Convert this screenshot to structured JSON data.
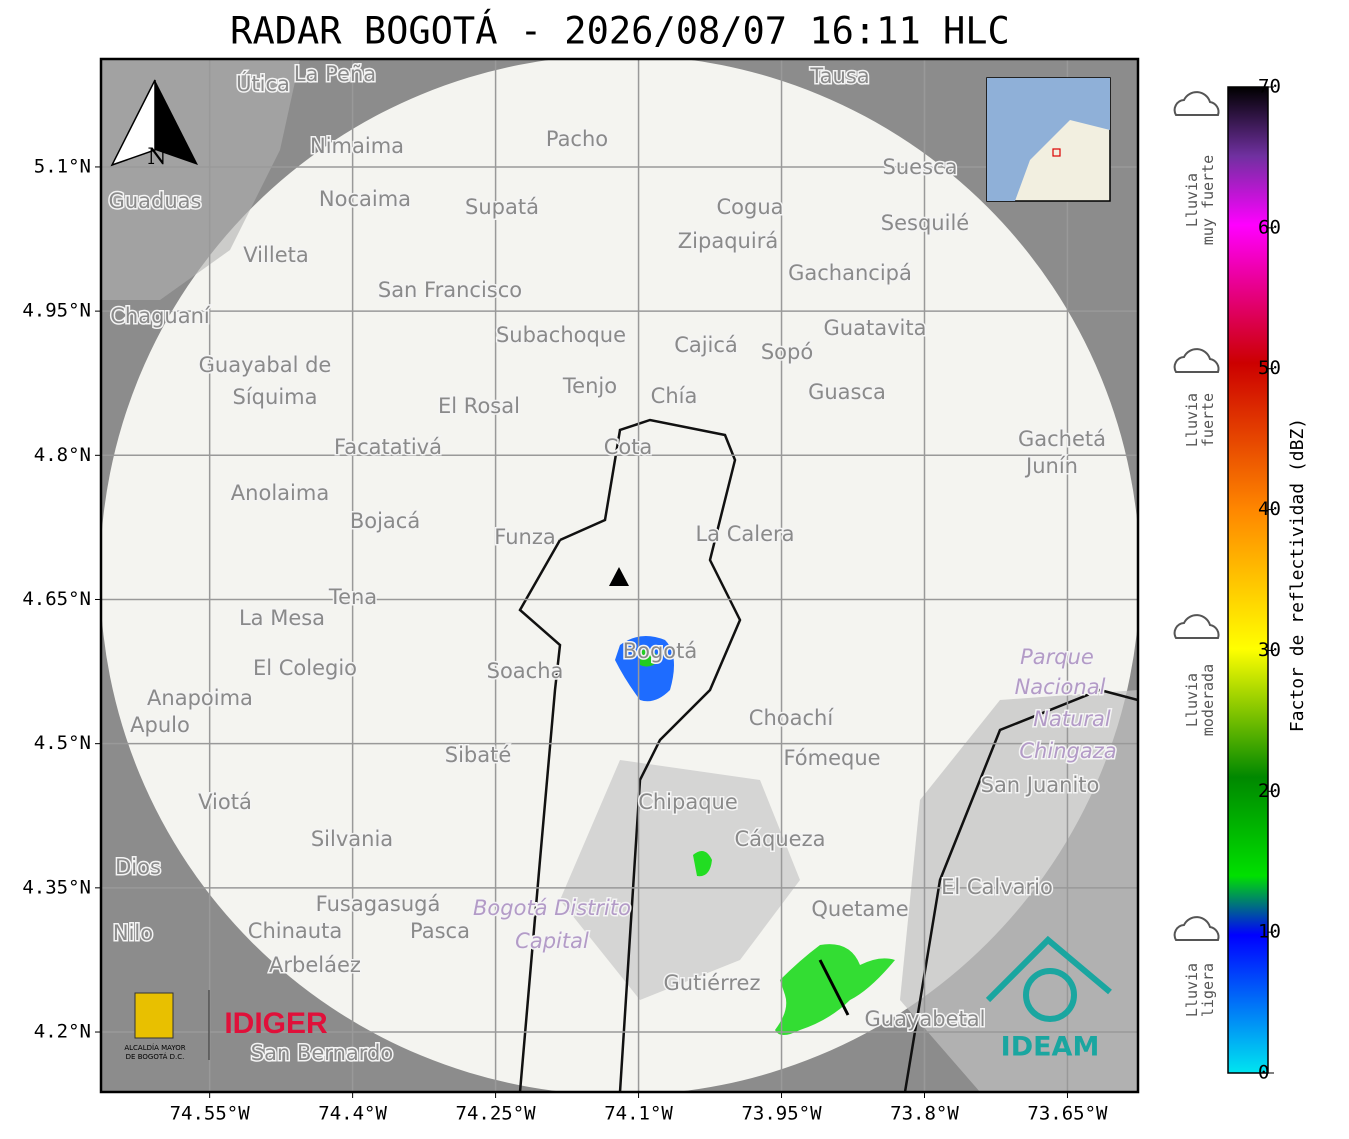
{
  "title": "RADAR BOGOTÁ - 2026/08/07 16:11 HLC",
  "map": {
    "lon_range": [
      -74.664,
      -73.576
    ],
    "lat_range": [
      4.1376,
      5.2123
    ],
    "lon_ticks": [
      {
        "value": -74.55,
        "label": "74.55°W"
      },
      {
        "value": -74.4,
        "label": "74.4°W"
      },
      {
        "value": -74.25,
        "label": "74.25°W"
      },
      {
        "value": -74.1,
        "label": "74.1°W"
      },
      {
        "value": -73.95,
        "label": "73.95°W"
      },
      {
        "value": -73.8,
        "label": "73.8°W"
      },
      {
        "value": -73.65,
        "label": "73.65°W"
      }
    ],
    "lat_ticks": [
      {
        "value": 5.1,
        "label": "5.1°N"
      },
      {
        "value": 4.95,
        "label": "4.95°N"
      },
      {
        "value": 4.8,
        "label": "4.8°N"
      },
      {
        "value": 4.65,
        "label": "4.65°N"
      },
      {
        "value": 4.5,
        "label": "4.5°N"
      },
      {
        "value": 4.35,
        "label": "4.35°N"
      },
      {
        "value": 4.2,
        "label": "4.2°N"
      }
    ],
    "north_label": "N",
    "places": [
      "Útica",
      "La Peña",
      "Tausa",
      "Pacho",
      "Nimaima",
      "Suesca",
      "Guaduas",
      "Nocaima",
      "Supatá",
      "Cogua",
      "Sesquilé",
      "Zipaquirá",
      "Villeta",
      "Gachancipá",
      "San Francisco",
      "Chaguaní",
      "Guatavita",
      "Subachoque",
      "Cajicá",
      "Sopó",
      "Guayabal de",
      "Síquima",
      "Tenjo",
      "Chía",
      "Guasca",
      "El Rosal",
      "Gachetá",
      "Junín",
      "Facatativá",
      "Cota",
      "Anolaima",
      "Bojacá",
      "La Calera",
      "Funza",
      "Tena",
      "La Mesa",
      "Bogotá",
      "El Colegio",
      "Soacha",
      "Anapoima",
      "Apulo",
      "Choachí",
      "Sibaté",
      "Fómeque",
      "San Juanito",
      "Chipaque",
      "Viotá",
      "Silvania",
      "Cáqueza",
      "Dios",
      "El Calvario",
      "Fusagasugá",
      "Quetame",
      "Nilo",
      "Chinauta",
      "Pasca",
      "Arbeláez",
      "Gutiérrez",
      "Guayabetal",
      "San Bernardo",
      "Bogotá Distrito",
      "Capital",
      "Parque",
      "Nacional",
      "Natural",
      "Chingaza"
    ]
  },
  "colorbar": {
    "label": "Factor de reflectividad (dBZ)",
    "range": [
      0,
      70
    ],
    "ticks": [
      0,
      10,
      20,
      30,
      40,
      50,
      60,
      70
    ]
  },
  "legend": [
    {
      "lines": [
        "Lluvia",
        "muy fuerte"
      ]
    },
    {
      "lines": [
        "Lluvia",
        "fuerte"
      ]
    },
    {
      "lines": [
        "Lluvia",
        "moderada"
      ]
    },
    {
      "lines": [
        "Lluvia",
        "ligera"
      ]
    }
  ],
  "logos": {
    "alcaldia": [
      "ALCALDÍA MAYOR",
      "DE BOGOTÁ D.C."
    ],
    "idiger": "IDIGER",
    "ideam": "IDEAM"
  }
}
